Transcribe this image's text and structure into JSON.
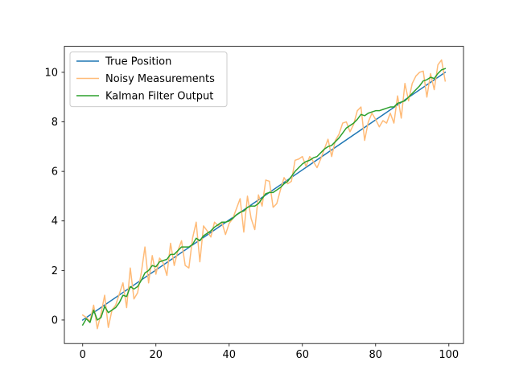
{
  "chart_data": {
    "type": "line",
    "title": "",
    "xlabel": "",
    "ylabel": "",
    "xlim": [
      -5,
      104
    ],
    "ylim": [
      -0.95,
      11.05
    ],
    "xticks": [
      0,
      20,
      40,
      60,
      80,
      100
    ],
    "yticks": [
      0,
      2,
      4,
      6,
      8,
      10
    ],
    "grid": false,
    "legend_position": "top-left",
    "series": [
      {
        "name": "True Position",
        "color": "#1f77b4",
        "x": [
          0,
          99
        ],
        "y": [
          0.0,
          10.0
        ]
      },
      {
        "name": "Noisy Measurements",
        "color": "#ffbb78",
        "x": [
          0,
          1,
          2,
          3,
          4,
          5,
          6,
          7,
          8,
          9,
          10,
          11,
          12,
          13,
          14,
          15,
          16,
          17,
          18,
          19,
          20,
          21,
          22,
          23,
          24,
          25,
          26,
          27,
          28,
          29,
          30,
          31,
          32,
          33,
          34,
          35,
          36,
          37,
          38,
          39,
          40,
          41,
          42,
          43,
          44,
          45,
          46,
          47,
          48,
          49,
          50,
          51,
          52,
          53,
          54,
          55,
          56,
          57,
          58,
          59,
          60,
          61,
          62,
          63,
          64,
          65,
          66,
          67,
          68,
          69,
          70,
          71,
          72,
          73,
          74,
          75,
          76,
          77,
          78,
          79,
          80,
          81,
          82,
          83,
          84,
          85,
          86,
          87,
          88,
          89,
          90,
          91,
          92,
          93,
          94,
          95,
          96,
          97,
          98,
          99
        ],
        "y": [
          0.2,
          0.1,
          -0.05,
          0.6,
          -0.35,
          0.25,
          1.0,
          -0.3,
          0.4,
          0.6,
          1.05,
          1.5,
          0.5,
          2.1,
          0.85,
          1.1,
          1.9,
          2.95,
          1.5,
          2.6,
          1.85,
          2.5,
          2.3,
          1.8,
          3.1,
          2.2,
          2.8,
          3.2,
          2.2,
          2.1,
          3.3,
          3.95,
          2.35,
          3.8,
          3.6,
          3.35,
          3.95,
          3.8,
          3.95,
          3.45,
          3.9,
          4.1,
          4.5,
          4.9,
          3.55,
          5.0,
          4.1,
          3.65,
          5.05,
          4.6,
          5.65,
          5.6,
          4.55,
          4.7,
          5.25,
          5.75,
          5.5,
          5.6,
          6.45,
          6.5,
          6.6,
          6.2,
          6.6,
          6.4,
          6.15,
          6.5,
          6.9,
          7.3,
          6.6,
          7.25,
          7.5,
          7.95,
          8.0,
          7.6,
          7.9,
          8.45,
          8.6,
          7.25,
          8.0,
          8.35,
          8.1,
          7.8,
          8.05,
          7.95,
          8.35,
          7.95,
          9.05,
          8.15,
          9.55,
          8.85,
          9.55,
          9.85,
          10.0,
          10.05,
          9.0,
          9.95,
          9.3,
          10.3,
          10.5,
          9.65
        ]
      },
      {
        "name": "Kalman Filter Output",
        "color": "#2ca02c",
        "x": [
          0,
          1,
          2,
          3,
          4,
          5,
          6,
          7,
          8,
          9,
          10,
          11,
          12,
          13,
          14,
          15,
          16,
          17,
          18,
          19,
          20,
          21,
          22,
          23,
          24,
          25,
          26,
          27,
          28,
          29,
          30,
          31,
          32,
          33,
          34,
          35,
          36,
          37,
          38,
          39,
          40,
          41,
          42,
          43,
          44,
          45,
          46,
          47,
          48,
          49,
          50,
          51,
          52,
          53,
          54,
          55,
          56,
          57,
          58,
          59,
          60,
          61,
          62,
          63,
          64,
          65,
          66,
          67,
          68,
          69,
          70,
          71,
          72,
          73,
          74,
          75,
          76,
          77,
          78,
          79,
          80,
          81,
          82,
          83,
          84,
          85,
          86,
          87,
          88,
          89,
          90,
          91,
          92,
          93,
          94,
          95,
          96,
          97,
          98,
          99
        ],
        "y": [
          -0.2,
          0.05,
          -0.1,
          0.4,
          0.0,
          0.1,
          0.55,
          0.3,
          0.4,
          0.5,
          0.7,
          1.0,
          0.95,
          1.35,
          1.25,
          1.35,
          1.6,
          1.9,
          2.0,
          2.2,
          2.15,
          2.35,
          2.4,
          2.45,
          2.65,
          2.65,
          2.8,
          2.95,
          2.95,
          2.95,
          3.05,
          3.3,
          3.2,
          3.4,
          3.5,
          3.6,
          3.75,
          3.85,
          3.95,
          3.95,
          4.0,
          4.1,
          4.25,
          4.35,
          4.4,
          4.55,
          4.6,
          4.6,
          4.7,
          4.9,
          5.1,
          5.15,
          5.15,
          5.25,
          5.35,
          5.5,
          5.6,
          5.8,
          6.0,
          6.15,
          6.3,
          6.4,
          6.45,
          6.55,
          6.6,
          6.75,
          6.9,
          7.0,
          7.05,
          7.2,
          7.35,
          7.55,
          7.75,
          7.85,
          7.95,
          8.1,
          8.3,
          8.25,
          8.35,
          8.4,
          8.45,
          8.45,
          8.5,
          8.55,
          8.6,
          8.6,
          8.75,
          8.8,
          8.85,
          9.0,
          9.15,
          9.3,
          9.45,
          9.65,
          9.7,
          9.8,
          9.75,
          9.95,
          10.1,
          10.15
        ]
      }
    ]
  }
}
